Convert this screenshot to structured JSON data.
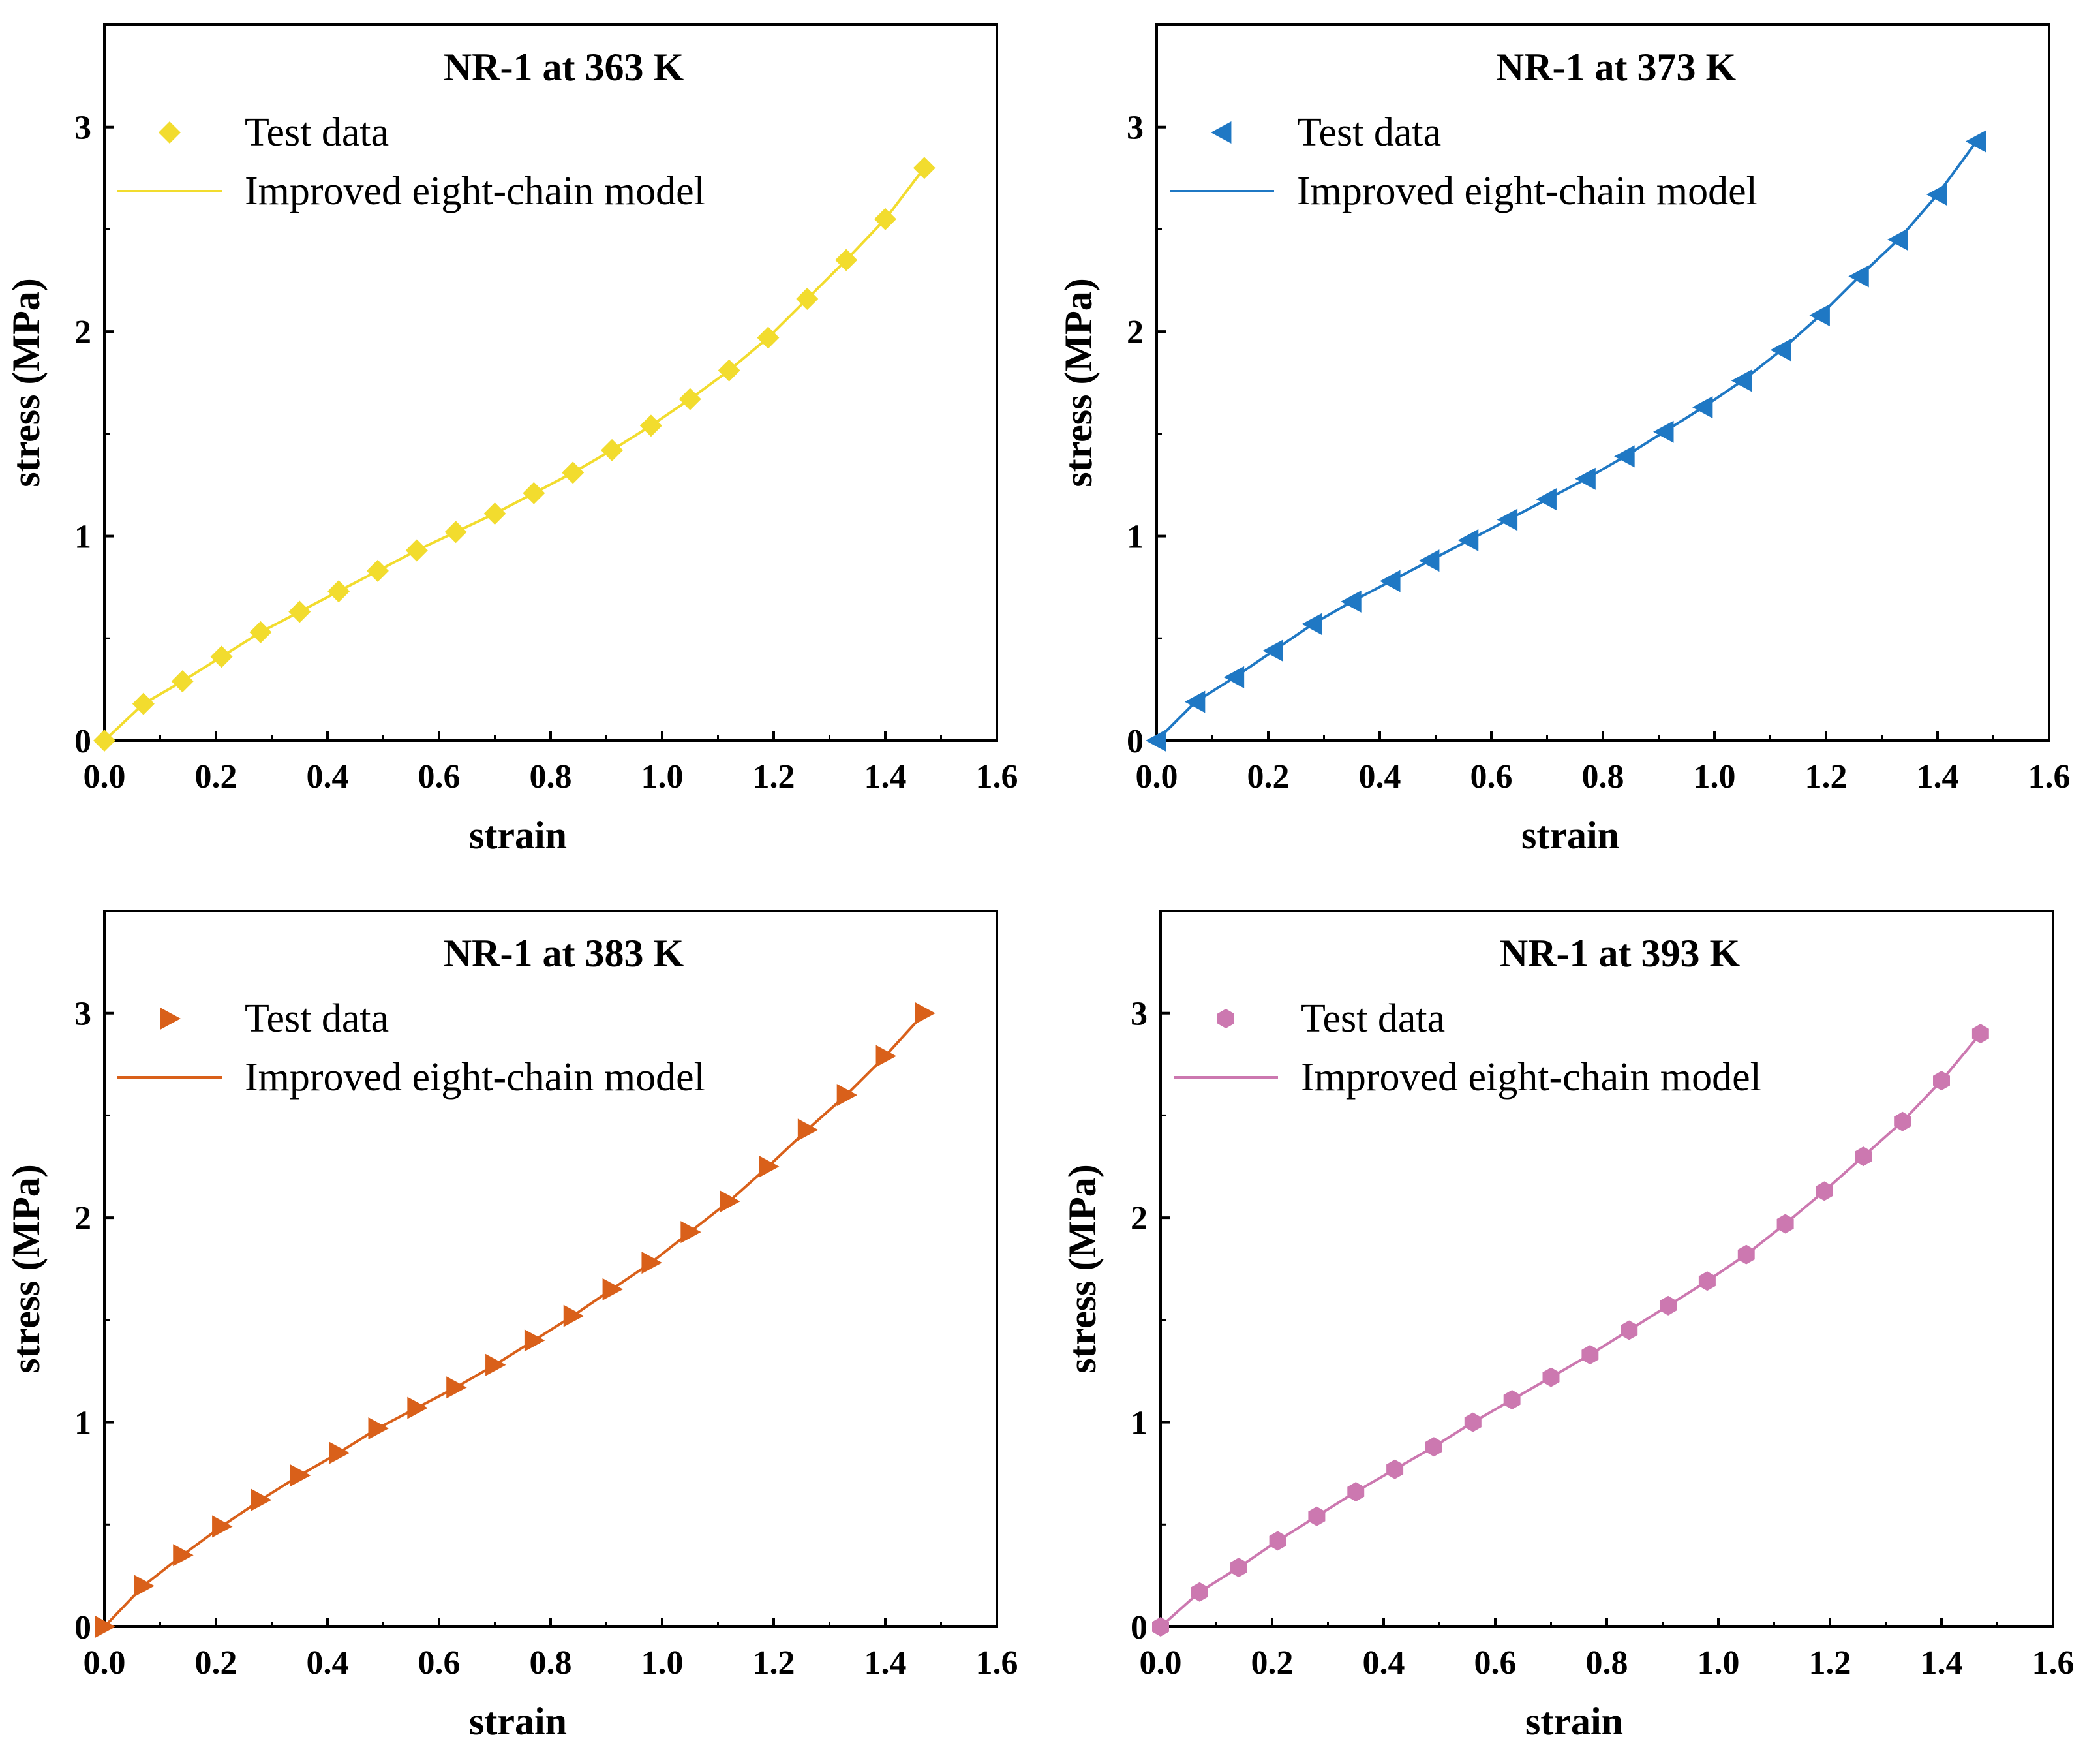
{
  "chart_data": [
    {
      "type": "scatter",
      "title": "NR-1 at 363 K",
      "xlabel": "strain",
      "ylabel": "stress (MPa)",
      "xlim": [
        0.0,
        1.6
      ],
      "ylim": [
        0,
        3.5
      ],
      "xticks": [
        "0.0",
        "0.2",
        "0.4",
        "0.6",
        "0.8",
        "1.0",
        "1.2",
        "1.4",
        "1.6"
      ],
      "yticks": [
        "0",
        "1",
        "2",
        "3"
      ],
      "grid": false,
      "legend_position": "top-left",
      "color": "#f2dc2e",
      "marker": "diamond",
      "series": [
        {
          "name": "Test data",
          "kind": "markers",
          "x": [
            0.0,
            0.07,
            0.14,
            0.21,
            0.28,
            0.35,
            0.42,
            0.49,
            0.56,
            0.63,
            0.7,
            0.77,
            0.84,
            0.91,
            0.98,
            1.05,
            1.12,
            1.19,
            1.26,
            1.33,
            1.4,
            1.47
          ],
          "y": [
            0.0,
            0.18,
            0.29,
            0.41,
            0.53,
            0.63,
            0.73,
            0.83,
            0.93,
            1.02,
            1.11,
            1.21,
            1.31,
            1.42,
            1.54,
            1.67,
            1.81,
            1.97,
            2.16,
            2.35,
            2.55,
            2.8
          ]
        },
        {
          "name": "Improved eight-chain model",
          "kind": "line",
          "x": [
            0.0,
            0.07,
            0.14,
            0.21,
            0.28,
            0.35,
            0.42,
            0.49,
            0.56,
            0.63,
            0.7,
            0.77,
            0.84,
            0.91,
            0.98,
            1.05,
            1.12,
            1.19,
            1.26,
            1.33,
            1.4,
            1.47
          ],
          "y": [
            0.0,
            0.18,
            0.29,
            0.41,
            0.53,
            0.63,
            0.73,
            0.83,
            0.93,
            1.02,
            1.11,
            1.21,
            1.31,
            1.42,
            1.54,
            1.67,
            1.81,
            1.97,
            2.16,
            2.35,
            2.55,
            2.8
          ]
        }
      ]
    },
    {
      "type": "scatter",
      "title": "NR-1 at 373 K",
      "xlabel": "strain",
      "ylabel": "stress (MPa)",
      "xlim": [
        0.0,
        1.6
      ],
      "ylim": [
        0,
        3.5
      ],
      "xticks": [
        "0.0",
        "0.2",
        "0.4",
        "0.6",
        "0.8",
        "1.0",
        "1.2",
        "1.4",
        "1.6"
      ],
      "yticks": [
        "0",
        "1",
        "2",
        "3"
      ],
      "grid": false,
      "legend_position": "top-left",
      "color": "#1f78c4",
      "marker": "triangle-left",
      "series": [
        {
          "name": "Test data",
          "kind": "markers",
          "x": [
            0.0,
            0.07,
            0.14,
            0.21,
            0.28,
            0.35,
            0.42,
            0.49,
            0.56,
            0.63,
            0.7,
            0.77,
            0.84,
            0.91,
            0.98,
            1.05,
            1.12,
            1.19,
            1.26,
            1.33,
            1.4,
            1.47
          ],
          "y": [
            0.0,
            0.19,
            0.31,
            0.44,
            0.57,
            0.68,
            0.78,
            0.88,
            0.98,
            1.08,
            1.18,
            1.28,
            1.39,
            1.51,
            1.63,
            1.76,
            1.91,
            2.08,
            2.27,
            2.45,
            2.67,
            2.93
          ]
        },
        {
          "name": "Improved eight-chain model",
          "kind": "line",
          "x": [
            0.0,
            0.07,
            0.14,
            0.21,
            0.28,
            0.35,
            0.42,
            0.49,
            0.56,
            0.63,
            0.7,
            0.77,
            0.84,
            0.91,
            0.98,
            1.05,
            1.12,
            1.19,
            1.26,
            1.33,
            1.4,
            1.47
          ],
          "y": [
            0.0,
            0.19,
            0.31,
            0.44,
            0.57,
            0.68,
            0.78,
            0.88,
            0.98,
            1.08,
            1.18,
            1.28,
            1.39,
            1.51,
            1.63,
            1.76,
            1.91,
            2.08,
            2.27,
            2.45,
            2.67,
            2.93
          ]
        }
      ]
    },
    {
      "type": "scatter",
      "title": "NR-1 at 383 K",
      "xlabel": "strain",
      "ylabel": "stress (MPa)",
      "xlim": [
        0.0,
        1.6
      ],
      "ylim": [
        0,
        3.5
      ],
      "xticks": [
        "0.0",
        "0.2",
        "0.4",
        "0.6",
        "0.8",
        "1.0",
        "1.2",
        "1.4",
        "1.6"
      ],
      "yticks": [
        "0",
        "1",
        "2",
        "3"
      ],
      "grid": false,
      "legend_position": "top-left",
      "color": "#d9601a",
      "marker": "triangle-right",
      "series": [
        {
          "name": "Test data",
          "kind": "markers",
          "x": [
            0.0,
            0.07,
            0.14,
            0.21,
            0.28,
            0.35,
            0.42,
            0.49,
            0.56,
            0.63,
            0.7,
            0.77,
            0.84,
            0.91,
            0.98,
            1.05,
            1.12,
            1.19,
            1.26,
            1.33,
            1.4,
            1.47
          ],
          "y": [
            0.0,
            0.2,
            0.35,
            0.49,
            0.62,
            0.74,
            0.85,
            0.97,
            1.07,
            1.17,
            1.28,
            1.4,
            1.52,
            1.65,
            1.78,
            1.93,
            2.08,
            2.25,
            2.43,
            2.6,
            2.79,
            3.0
          ]
        },
        {
          "name": "Improved eight-chain model",
          "kind": "line",
          "x": [
            0.0,
            0.07,
            0.14,
            0.21,
            0.28,
            0.35,
            0.42,
            0.49,
            0.56,
            0.63,
            0.7,
            0.77,
            0.84,
            0.91,
            0.98,
            1.05,
            1.12,
            1.19,
            1.26,
            1.33,
            1.4,
            1.47
          ],
          "y": [
            0.0,
            0.2,
            0.35,
            0.49,
            0.62,
            0.74,
            0.85,
            0.97,
            1.07,
            1.17,
            1.28,
            1.4,
            1.52,
            1.65,
            1.78,
            1.93,
            2.08,
            2.25,
            2.43,
            2.6,
            2.79,
            3.0
          ]
        }
      ]
    },
    {
      "type": "scatter",
      "title": "NR-1 at 393 K",
      "xlabel": "strain",
      "ylabel": "stress (MPa)",
      "xlim": [
        0.0,
        1.6
      ],
      "ylim": [
        0,
        3.5
      ],
      "xticks": [
        "0.0",
        "0.2",
        "0.4",
        "0.6",
        "0.8",
        "1.0",
        "1.2",
        "1.4",
        "1.6"
      ],
      "yticks": [
        "0",
        "1",
        "2",
        "3"
      ],
      "grid": false,
      "legend_position": "top-left",
      "color": "#cc78b0",
      "marker": "hexagon",
      "series": [
        {
          "name": "Test data",
          "kind": "markers",
          "x": [
            0.0,
            0.07,
            0.14,
            0.21,
            0.28,
            0.35,
            0.42,
            0.49,
            0.56,
            0.63,
            0.7,
            0.77,
            0.84,
            0.91,
            0.98,
            1.05,
            1.12,
            1.19,
            1.26,
            1.33,
            1.4,
            1.47
          ],
          "y": [
            0.0,
            0.17,
            0.29,
            0.42,
            0.54,
            0.66,
            0.77,
            0.88,
            1.0,
            1.11,
            1.22,
            1.33,
            1.45,
            1.57,
            1.69,
            1.82,
            1.97,
            2.13,
            2.3,
            2.47,
            2.67,
            2.9
          ]
        },
        {
          "name": "Improved eight-chain model",
          "kind": "line",
          "x": [
            0.0,
            0.07,
            0.14,
            0.21,
            0.28,
            0.35,
            0.42,
            0.49,
            0.56,
            0.63,
            0.7,
            0.77,
            0.84,
            0.91,
            0.98,
            1.05,
            1.12,
            1.19,
            1.26,
            1.33,
            1.4,
            1.47
          ],
          "y": [
            0.0,
            0.17,
            0.29,
            0.42,
            0.54,
            0.66,
            0.77,
            0.88,
            1.0,
            1.11,
            1.22,
            1.33,
            1.45,
            1.57,
            1.69,
            1.82,
            1.97,
            2.13,
            2.3,
            2.47,
            2.67,
            2.9
          ]
        }
      ]
    }
  ]
}
